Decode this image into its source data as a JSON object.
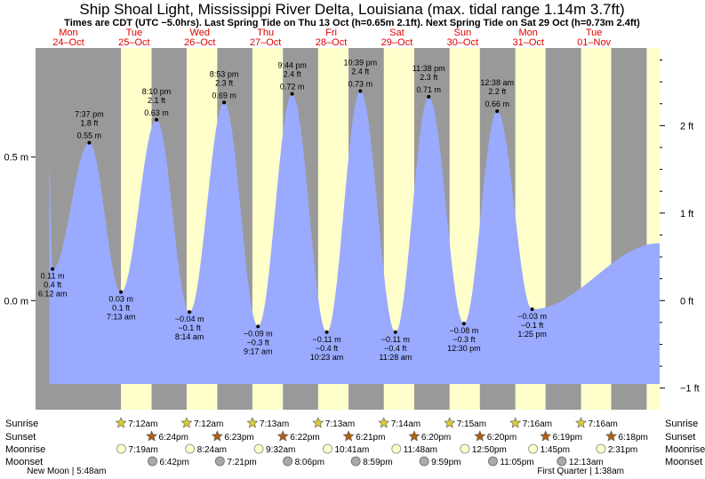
{
  "chart_data": {
    "type": "area",
    "title": "Ship Shoal Light, Mississippi River Delta, Louisiana (max. tidal range 1.14m 3.7ft)",
    "subtitle": "Times are CDT (UTC −5.0hrs). Last Spring Tide on Thu 13 Oct (h=0.65m 2.1ft). Next Spring Tide on Sat 29 Oct (h=0.73m 2.4ft)",
    "x_unit": "hours since Mon 24-Oct 00:00",
    "xlim": [
      0,
      228
    ],
    "ylim_m": [
      -0.38,
      0.88
    ],
    "left_axis": {
      "unit": "m",
      "ticks": [
        0.5,
        0.0
      ],
      "labels": [
        "0.5 m",
        "0.0 m"
      ]
    },
    "right_axis": {
      "unit": "ft",
      "ticks": [
        2,
        1,
        0,
        -1
      ],
      "labels": [
        "2 ft",
        "1 ft",
        "0 ft",
        "−1 ft"
      ]
    },
    "days": [
      {
        "name": "Mon",
        "date": "24–Oct"
      },
      {
        "name": "Tue",
        "date": "25–Oct"
      },
      {
        "name": "Wed",
        "date": "26–Oct"
      },
      {
        "name": "Thu",
        "date": "27–Oct"
      },
      {
        "name": "Fri",
        "date": "28–Oct"
      },
      {
        "name": "Sat",
        "date": "29–Oct"
      },
      {
        "name": "Sun",
        "date": "30–Oct"
      },
      {
        "name": "Mon",
        "date": "31–Oct"
      },
      {
        "name": "Tue",
        "date": "01–Nov"
      }
    ],
    "daylight": [
      [
        31.2,
        42.4
      ],
      [
        55.2,
        66.38
      ],
      [
        79.22,
        90.37
      ],
      [
        103.22,
        114.35
      ],
      [
        127.23,
        138.33
      ],
      [
        151.25,
        162.33
      ],
      [
        175.27,
        186.32
      ],
      [
        199.27,
        210.3
      ],
      [
        223.27,
        228
      ]
    ],
    "tide_start": {
      "t": 5.0,
      "h": 0.47
    },
    "tide_end": {
      "t": 228,
      "h": 0.2
    },
    "extremes": [
      {
        "type": "low",
        "t": 6.2,
        "h": 0.11,
        "time": "6:12 am",
        "m": "0.11 m",
        "ft": "0.4 ft"
      },
      {
        "type": "high",
        "t": 19.62,
        "h": 0.55,
        "time": "7:37 pm",
        "m": "0.55 m",
        "ft": "1.8 ft"
      },
      {
        "type": "low",
        "t": 31.22,
        "h": 0.03,
        "time": "7:13 am",
        "m": "0.03 m",
        "ft": "0.1 ft"
      },
      {
        "type": "high",
        "t": 44.17,
        "h": 0.63,
        "time": "8:10 pm",
        "m": "0.63 m",
        "ft": "2.1 ft"
      },
      {
        "type": "low",
        "t": 56.23,
        "h": -0.04,
        "time": "8:14 am",
        "m": "−0.04 m",
        "ft": "−0.1 ft"
      },
      {
        "type": "high",
        "t": 68.88,
        "h": 0.69,
        "time": "8:53 pm",
        "m": "0.69 m",
        "ft": "2.3 ft"
      },
      {
        "type": "low",
        "t": 81.28,
        "h": -0.09,
        "time": "9:17 am",
        "m": "−0.09 m",
        "ft": "−0.3 ft"
      },
      {
        "type": "high",
        "t": 93.73,
        "h": 0.72,
        "time": "9:44 pm",
        "m": "0.72 m",
        "ft": "2.4 ft"
      },
      {
        "type": "low",
        "t": 106.38,
        "h": -0.11,
        "time": "10:23 am",
        "m": "−0.11 m",
        "ft": "−0.4 ft"
      },
      {
        "type": "high",
        "t": 118.65,
        "h": 0.73,
        "time": "10:39 pm",
        "m": "0.73 m",
        "ft": "2.4 ft"
      },
      {
        "type": "low",
        "t": 131.47,
        "h": -0.11,
        "time": "11:28 am",
        "m": "−0.11 m",
        "ft": "−0.4 ft"
      },
      {
        "type": "high",
        "t": 143.63,
        "h": 0.71,
        "time": "11:38 pm",
        "m": "0.71 m",
        "ft": "2.3 ft"
      },
      {
        "type": "low",
        "t": 156.5,
        "h": -0.08,
        "time": "12:30 pm",
        "m": "−0.08 m",
        "ft": "−0.3 ft"
      },
      {
        "type": "high",
        "t": 168.63,
        "h": 0.66,
        "time": "12:38 am",
        "m": "0.66 m",
        "ft": "2.2 ft"
      },
      {
        "type": "low",
        "t": 181.42,
        "h": -0.03,
        "time": "1:25 pm",
        "m": "−0.03 m",
        "ft": "−0.1 ft"
      }
    ],
    "rows": {
      "sunrise": {
        "label": "Sunrise",
        "events": [
          {
            "t": 31.2,
            "time": "7:12am"
          },
          {
            "t": 55.2,
            "time": "7:12am"
          },
          {
            "t": 79.22,
            "time": "7:13am"
          },
          {
            "t": 103.22,
            "time": "7:13am"
          },
          {
            "t": 127.23,
            "time": "7:14am"
          },
          {
            "t": 151.25,
            "time": "7:15am"
          },
          {
            "t": 175.27,
            "time": "7:16am"
          },
          {
            "t": 199.27,
            "time": "7:16am"
          }
        ]
      },
      "sunset": {
        "label": "Sunset",
        "events": [
          {
            "t": 42.4,
            "time": "6:24pm"
          },
          {
            "t": 66.38,
            "time": "6:23pm"
          },
          {
            "t": 90.37,
            "time": "6:22pm"
          },
          {
            "t": 114.35,
            "time": "6:21pm"
          },
          {
            "t": 138.33,
            "time": "6:20pm"
          },
          {
            "t": 162.33,
            "time": "6:20pm"
          },
          {
            "t": 186.32,
            "time": "6:19pm"
          },
          {
            "t": 210.3,
            "time": "6:18pm"
          }
        ]
      },
      "moonrise": {
        "label": "Moonrise",
        "events": [
          {
            "t": 31.32,
            "time": "7:19am"
          },
          {
            "t": 56.4,
            "time": "8:24am"
          },
          {
            "t": 81.53,
            "time": "9:32am"
          },
          {
            "t": 106.68,
            "time": "10:41am"
          },
          {
            "t": 131.8,
            "time": "11:48am"
          },
          {
            "t": 156.83,
            "time": "12:50pm"
          },
          {
            "t": 181.75,
            "time": "1:45pm"
          },
          {
            "t": 206.52,
            "time": "2:31pm"
          }
        ]
      },
      "moonset": {
        "label": "Moonset",
        "events": [
          {
            "t": 42.7,
            "time": "6:42pm"
          },
          {
            "t": 67.35,
            "time": "7:21pm"
          },
          {
            "t": 92.1,
            "time": "8:06pm"
          },
          {
            "t": 116.98,
            "time": "8:59pm"
          },
          {
            "t": 141.98,
            "time": "9:59pm"
          },
          {
            "t": 167.08,
            "time": "11:05pm"
          },
          {
            "t": 192.22,
            "time": "12:13am"
          }
        ]
      }
    },
    "moon_phases": [
      {
        "text": "New Moon | 5:48am",
        "t": 5.8
      },
      {
        "text": "First Quarter | 1:38am",
        "t": 193.63
      }
    ],
    "colors": {
      "night": "#999999",
      "day": "#ffffcc",
      "tide": "#99aaff",
      "label_red": "#e00000",
      "sunrise_star": "#ddcc33",
      "sunset_star": "#b06010",
      "moonrise": "#ffffcc",
      "moonset": "#aaaaaa"
    }
  }
}
